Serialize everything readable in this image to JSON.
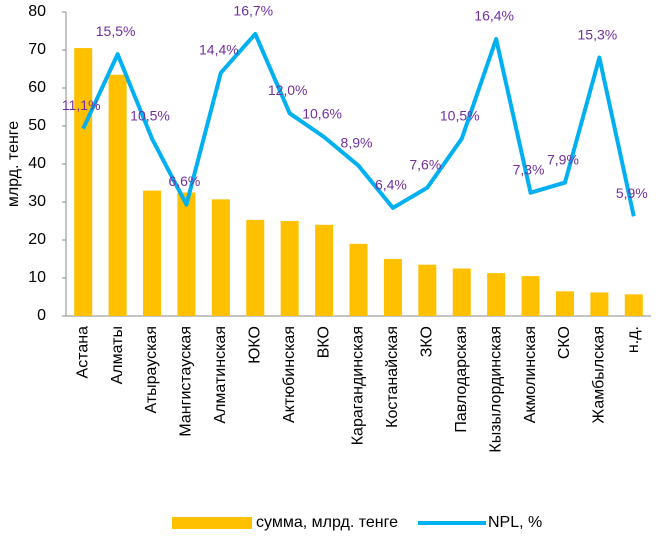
{
  "chart_data": {
    "type": "bar_line",
    "y_label": "млрд. тенге",
    "categories": [
      "Астана",
      "Алматы",
      "Атырауская",
      "Мангистауская",
      "Алматинская",
      "ЮКО",
      "Актюбинская",
      "ВКО",
      "Карагандинская",
      "Костанайская",
      "ЗКО",
      "Павлодарская",
      "Кызылординская",
      "Акмолинская",
      "СКО",
      "Жамбылская",
      "н.д."
    ],
    "series": [
      {
        "name": "сумма, млрд. тенге",
        "type": "bar",
        "color": "#ffc000",
        "values": [
          70.5,
          63.5,
          33,
          32.5,
          30.7,
          25.3,
          25,
          24,
          19,
          15,
          13.5,
          12.5,
          11.3,
          10.5,
          6.5,
          6.2,
          5.7
        ]
      },
      {
        "name": "NPL, %",
        "type": "line",
        "axis": "y2",
        "color": "#00b0f0",
        "label_color": "#7030a0",
        "values": [
          11.1,
          15.5,
          10.5,
          6.6,
          14.4,
          16.7,
          12.0,
          10.6,
          8.9,
          6.4,
          7.6,
          10.5,
          16.4,
          7.3,
          7.9,
          15.3,
          5.9
        ],
        "value_labels": [
          "11,1%",
          "15,5%",
          "10,5%",
          "6,6%",
          "14,4%",
          "16,7%",
          "12,0%",
          "10,6%",
          "8,9%",
          "6,4%",
          "7,6%",
          "10,5%",
          "16,4%",
          "7,3%",
          "7,9%",
          "15,3%",
          "5,9%"
        ]
      }
    ],
    "ylim": [
      0,
      80
    ],
    "yticks": [
      0,
      10,
      20,
      30,
      40,
      50,
      60,
      70,
      80
    ],
    "y2lim": [
      0,
      18
    ],
    "legend": "bottom"
  }
}
